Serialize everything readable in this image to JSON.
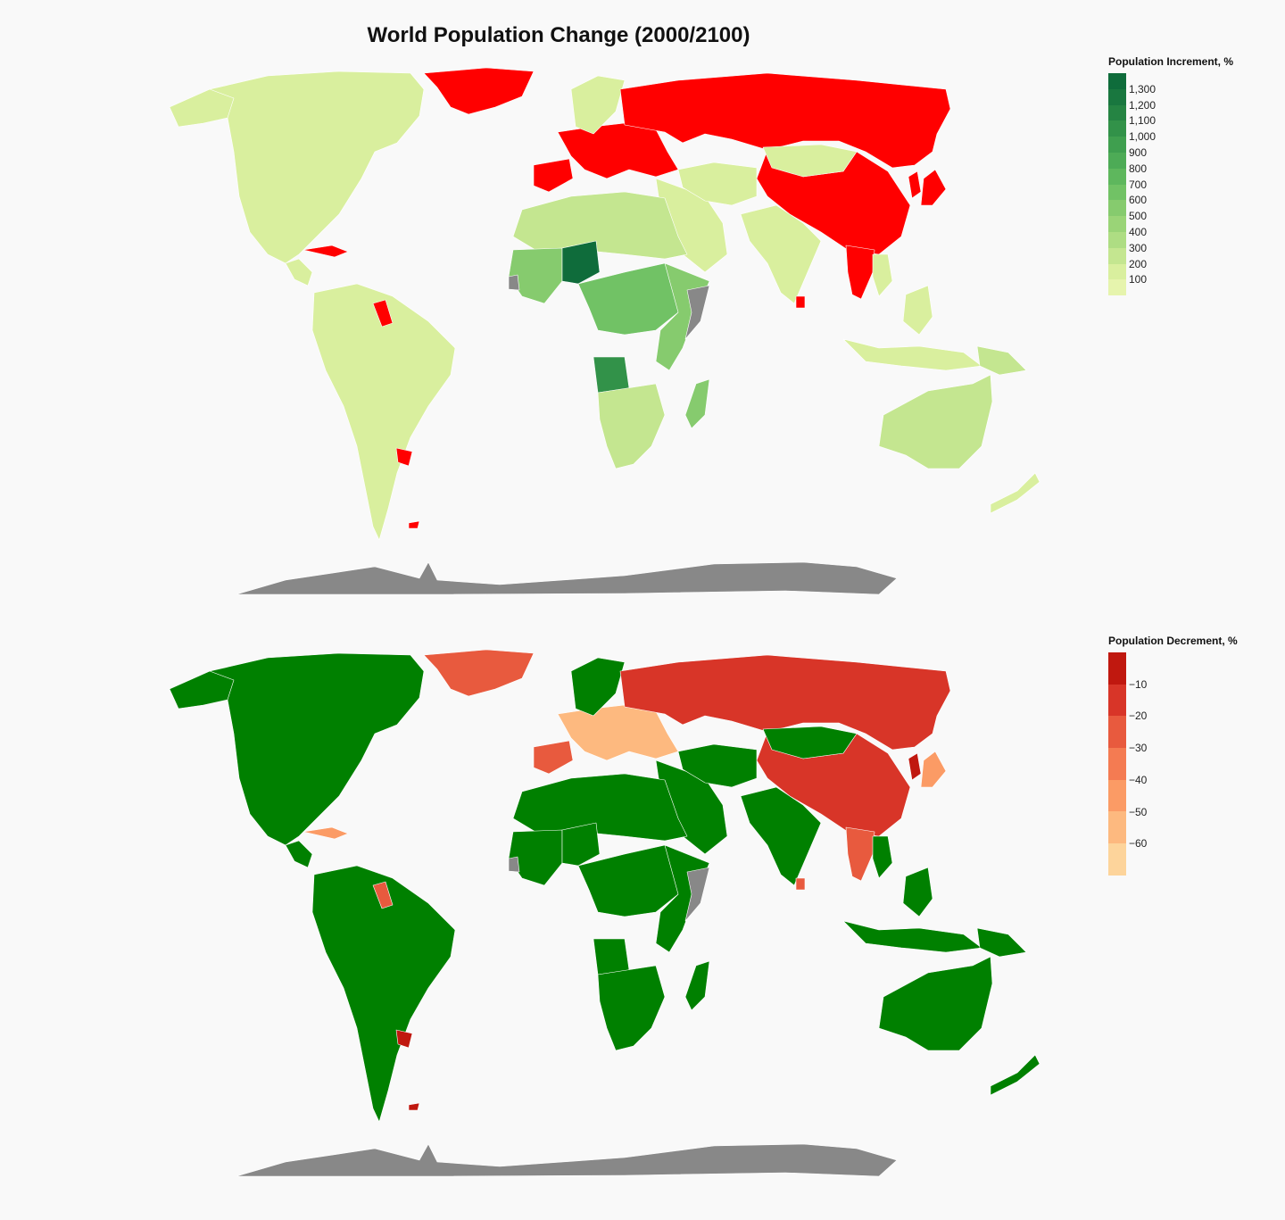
{
  "title": "World Population Change (2000/2100)",
  "colors": {
    "background": "#f9f9f9",
    "decrease_top": "#ff0000",
    "increase_bottom": "#008000",
    "no_data": "#888888",
    "border": "#ffffff"
  },
  "maps": [
    {
      "mode": "increment",
      "legend": {
        "title": "Population Increment, %",
        "ticks": [
          "1,300",
          "1,200",
          "1,100",
          "1,000",
          "900",
          "800",
          "700",
          "600",
          "500",
          "400",
          "300",
          "200",
          "100"
        ],
        "swatches": [
          "#0f6c3b",
          "#19773f",
          "#258443",
          "#329249",
          "#3f9f4f",
          "#4dab56",
          "#5eb75d",
          "#71c265",
          "#86cb6e",
          "#9ad477",
          "#aedd83",
          "#c4e690",
          "#d9ef9e",
          "#e6f4ad"
        ]
      },
      "regions": [
        {
          "name": "north-america",
          "color": "#d9ef9e"
        },
        {
          "name": "alaska",
          "color": "#d9ef9e"
        },
        {
          "name": "greenland",
          "color": "#ff0000"
        },
        {
          "name": "caribbean",
          "color": "#ff0000"
        },
        {
          "name": "central-america",
          "color": "#d9ef9e"
        },
        {
          "name": "south-america",
          "color": "#d9ef9e"
        },
        {
          "name": "guianas",
          "color": "#ff0000"
        },
        {
          "name": "uruguay",
          "color": "#ff0000"
        },
        {
          "name": "falklands",
          "color": "#ff0000"
        },
        {
          "name": "europe",
          "color": "#ff0000"
        },
        {
          "name": "scandinavia",
          "color": "#d9ef9e"
        },
        {
          "name": "iberia",
          "color": "#ff0000"
        },
        {
          "name": "russia",
          "color": "#ff0000"
        },
        {
          "name": "china",
          "color": "#ff0000"
        },
        {
          "name": "mongolia",
          "color": "#d9ef9e"
        },
        {
          "name": "japan",
          "color": "#ff0000"
        },
        {
          "name": "korea",
          "color": "#ff0000"
        },
        {
          "name": "middle-east",
          "color": "#d9ef9e"
        },
        {
          "name": "central-asia",
          "color": "#d9ef9e"
        },
        {
          "name": "india",
          "color": "#d9ef9e"
        },
        {
          "name": "sri-lanka",
          "color": "#ff0000"
        },
        {
          "name": "southeast-asia",
          "color": "#ff0000"
        },
        {
          "name": "indochina",
          "color": "#d9ef9e"
        },
        {
          "name": "indonesia",
          "color": "#d9ef9e"
        },
        {
          "name": "philippines",
          "color": "#d9ef9e"
        },
        {
          "name": "new-guinea",
          "color": "#c4e690"
        },
        {
          "name": "north-africa",
          "color": "#c4e690"
        },
        {
          "name": "west-africa",
          "color": "#86cb6e"
        },
        {
          "name": "niger",
          "color": "#0f6c3b"
        },
        {
          "name": "central-africa",
          "color": "#71c265"
        },
        {
          "name": "angola",
          "color": "#329249"
        },
        {
          "name": "east-africa",
          "color": "#86cb6e"
        },
        {
          "name": "southern-africa",
          "color": "#c4e690"
        },
        {
          "name": "madagascar",
          "color": "#86cb6e"
        },
        {
          "name": "australia",
          "color": "#c4e690"
        },
        {
          "name": "new-zealand",
          "color": "#d9ef9e"
        },
        {
          "name": "somalia",
          "color": "#888888"
        },
        {
          "name": "west-sahara",
          "color": "#888888"
        },
        {
          "name": "antarctica",
          "color": "#888888"
        }
      ]
    },
    {
      "mode": "decrement",
      "legend": {
        "title": "Population Decrement, %",
        "ticks": [
          "−10",
          "−20",
          "−30",
          "−40",
          "−50",
          "−60"
        ],
        "swatches": [
          "#c0180f",
          "#d83528",
          "#e85a3e",
          "#f47b52",
          "#fb9b65",
          "#fdb97f",
          "#fdd49b"
        ]
      },
      "regions": [
        {
          "name": "north-america",
          "color": "#008000"
        },
        {
          "name": "alaska",
          "color": "#008000"
        },
        {
          "name": "greenland",
          "color": "#e85a3e"
        },
        {
          "name": "caribbean",
          "color": "#fb9b65"
        },
        {
          "name": "central-america",
          "color": "#008000"
        },
        {
          "name": "south-america",
          "color": "#008000"
        },
        {
          "name": "guianas",
          "color": "#e85a3e"
        },
        {
          "name": "uruguay",
          "color": "#c0180f"
        },
        {
          "name": "falklands",
          "color": "#c0180f"
        },
        {
          "name": "europe",
          "color": "#fdb97f"
        },
        {
          "name": "scandinavia",
          "color": "#008000"
        },
        {
          "name": "iberia",
          "color": "#e85a3e"
        },
        {
          "name": "russia",
          "color": "#d83528"
        },
        {
          "name": "china",
          "color": "#d83528"
        },
        {
          "name": "mongolia",
          "color": "#008000"
        },
        {
          "name": "japan",
          "color": "#fb9b65"
        },
        {
          "name": "korea",
          "color": "#c0180f"
        },
        {
          "name": "middle-east",
          "color": "#008000"
        },
        {
          "name": "central-asia",
          "color": "#008000"
        },
        {
          "name": "india",
          "color": "#008000"
        },
        {
          "name": "sri-lanka",
          "color": "#e85a3e"
        },
        {
          "name": "southeast-asia",
          "color": "#e85a3e"
        },
        {
          "name": "indochina",
          "color": "#008000"
        },
        {
          "name": "indonesia",
          "color": "#008000"
        },
        {
          "name": "philippines",
          "color": "#008000"
        },
        {
          "name": "new-guinea",
          "color": "#008000"
        },
        {
          "name": "north-africa",
          "color": "#008000"
        },
        {
          "name": "west-africa",
          "color": "#008000"
        },
        {
          "name": "niger",
          "color": "#008000"
        },
        {
          "name": "central-africa",
          "color": "#008000"
        },
        {
          "name": "angola",
          "color": "#008000"
        },
        {
          "name": "east-africa",
          "color": "#008000"
        },
        {
          "name": "southern-africa",
          "color": "#008000"
        },
        {
          "name": "madagascar",
          "color": "#008000"
        },
        {
          "name": "australia",
          "color": "#008000"
        },
        {
          "name": "new-zealand",
          "color": "#008000"
        },
        {
          "name": "somalia",
          "color": "#888888"
        },
        {
          "name": "west-sahara",
          "color": "#888888"
        },
        {
          "name": "antarctica",
          "color": "#888888"
        }
      ]
    }
  ]
}
